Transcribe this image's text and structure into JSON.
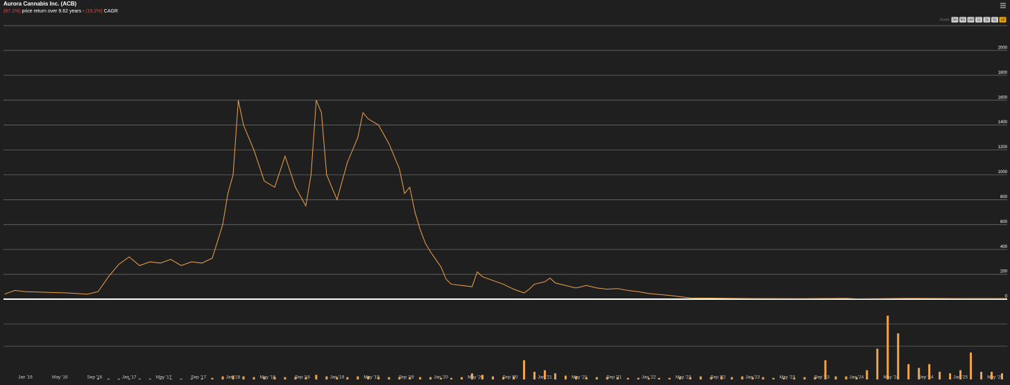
{
  "chart_data": {
    "type": "line",
    "title": "Aurora Cannabis Inc. (ACB)",
    "subtitle": [
      "(87.1%)",
      "price return over 9.62 years -",
      "(19.2%)",
      "CAGR"
    ],
    "zoom": {
      "label": "Zoom",
      "buttons": [
        "3m",
        "6m",
        "ytd",
        "1y",
        "3y",
        "5y",
        "all"
      ],
      "active": 6
    },
    "xlim": [
      2015.79,
      2025.45
    ],
    "xticks": [
      {
        "value": 2016,
        "label": "Jan '16"
      },
      {
        "value": 2016.333,
        "label": "May '16"
      },
      {
        "value": 2016.667,
        "label": "Sep '16"
      },
      {
        "value": 2017,
        "label": "Jan '17"
      },
      {
        "value": 2017.333,
        "label": "May '17"
      },
      {
        "value": 2017.667,
        "label": "Sep '17"
      },
      {
        "value": 2018,
        "label": "Jan '18"
      },
      {
        "value": 2018.333,
        "label": "May '18"
      },
      {
        "value": 2018.667,
        "label": "Sep '18"
      },
      {
        "value": 2019,
        "label": "Jan '19"
      },
      {
        "value": 2019.333,
        "label": "May '19"
      },
      {
        "value": 2019.667,
        "label": "Sep '19"
      },
      {
        "value": 2020,
        "label": "Jan '20"
      },
      {
        "value": 2020.333,
        "label": "May '20"
      },
      {
        "value": 2020.667,
        "label": "Sep '20"
      },
      {
        "value": 2021,
        "label": "Jan '21"
      },
      {
        "value": 2021.333,
        "label": "May '21"
      },
      {
        "value": 2021.667,
        "label": "Sep '21"
      },
      {
        "value": 2022,
        "label": "Jan '22"
      },
      {
        "value": 2022.333,
        "label": "May '22"
      },
      {
        "value": 2022.667,
        "label": "Sep '22"
      },
      {
        "value": 2023,
        "label": "Jan '23"
      },
      {
        "value": 2023.333,
        "label": "May '23"
      },
      {
        "value": 2023.667,
        "label": "Sep '23"
      },
      {
        "value": 2024,
        "label": "Jan '24"
      },
      {
        "value": 2024.333,
        "label": "May '24"
      },
      {
        "value": 2024.667,
        "label": "Sep '24"
      },
      {
        "value": 2025,
        "label": "Jan '25"
      },
      {
        "value": 2025.333,
        "label": "May '25"
      }
    ],
    "ylim": [
      0,
      2200
    ],
    "yticks": [
      0,
      200,
      400,
      600,
      800,
      1000,
      1200,
      1400,
      1600,
      1800,
      2000
    ],
    "y2lim": [
      0,
      100
    ],
    "grid": true,
    "series": [
      {
        "name": "Price",
        "type": "line",
        "color": "#f2a54a",
        "x": [
          2015.8,
          2015.9,
          2016.0,
          2016.2,
          2016.4,
          2016.6,
          2016.7,
          2016.8,
          2016.9,
          2017.0,
          2017.1,
          2017.2,
          2017.3,
          2017.4,
          2017.5,
          2017.6,
          2017.7,
          2017.8,
          2017.9,
          2017.95,
          2018.0,
          2018.05,
          2018.1,
          2018.15,
          2018.2,
          2018.3,
          2018.4,
          2018.5,
          2018.6,
          2018.7,
          2018.75,
          2018.8,
          2018.85,
          2018.9,
          2018.95,
          2019.0,
          2019.05,
          2019.1,
          2019.2,
          2019.25,
          2019.3,
          2019.4,
          2019.5,
          2019.6,
          2019.65,
          2019.7,
          2019.75,
          2019.8,
          2019.85,
          2019.9,
          2019.95,
          2020.0,
          2020.05,
          2020.1,
          2020.2,
          2020.3,
          2020.35,
          2020.4,
          2020.5,
          2020.6,
          2020.7,
          2020.8,
          2020.85,
          2020.9,
          2021.0,
          2021.05,
          2021.1,
          2021.2,
          2021.3,
          2021.4,
          2021.5,
          2021.6,
          2021.7,
          2021.8,
          2021.9,
          2022.0,
          2022.2,
          2022.4,
          2022.6,
          2022.8,
          2023.0,
          2023.5,
          2023.9,
          2024.0,
          2024.5,
          2025.0,
          2025.45
        ],
        "values": [
          40,
          70,
          60,
          55,
          50,
          40,
          60,
          180,
          280,
          340,
          270,
          300,
          290,
          320,
          270,
          300,
          290,
          330,
          600,
          850,
          1000,
          1600,
          1400,
          1300,
          1200,
          950,
          900,
          1150,
          900,
          750,
          1000,
          1600,
          1500,
          1000,
          900,
          800,
          950,
          1100,
          1300,
          1500,
          1450,
          1400,
          1250,
          1050,
          850,
          900,
          700,
          560,
          450,
          380,
          320,
          260,
          160,
          120,
          110,
          100,
          220,
          180,
          150,
          120,
          80,
          50,
          80,
          120,
          140,
          170,
          130,
          110,
          90,
          110,
          90,
          80,
          85,
          70,
          60,
          45,
          30,
          10,
          8,
          6,
          5,
          4,
          6,
          3,
          6,
          5,
          5
        ]
      },
      {
        "name": "Volume",
        "type": "bar",
        "axis": "y2",
        "color": "#f2a54a",
        "x": [
          2016.7,
          2016.8,
          2016.9,
          2017.0,
          2017.1,
          2017.2,
          2017.3,
          2017.4,
          2017.5,
          2017.6,
          2017.7,
          2017.8,
          2017.9,
          2018.0,
          2018.1,
          2018.2,
          2018.3,
          2018.4,
          2018.5,
          2018.6,
          2018.7,
          2018.8,
          2018.9,
          2019.0,
          2019.1,
          2019.2,
          2019.3,
          2019.4,
          2019.5,
          2019.6,
          2019.7,
          2019.8,
          2019.9,
          2020.0,
          2020.1,
          2020.2,
          2020.3,
          2020.4,
          2020.5,
          2020.6,
          2020.7,
          2020.8,
          2020.9,
          2021.0,
          2021.1,
          2021.2,
          2021.3,
          2021.4,
          2021.5,
          2021.6,
          2021.7,
          2021.8,
          2021.9,
          2022.0,
          2022.1,
          2022.2,
          2022.3,
          2022.4,
          2022.5,
          2022.6,
          2022.7,
          2022.8,
          2022.9,
          2023.0,
          2023.1,
          2023.2,
          2023.3,
          2023.4,
          2023.5,
          2023.6,
          2023.7,
          2023.8,
          2023.9,
          2024.0,
          2024.1,
          2024.2,
          2024.3,
          2024.4,
          2024.5,
          2024.6,
          2024.7,
          2024.8,
          2024.9,
          2025.0,
          2025.1,
          2025.2,
          2025.3,
          2025.4
        ],
        "values": [
          1,
          1,
          1,
          1,
          1,
          1,
          1,
          1,
          1,
          1,
          1,
          2,
          4,
          5,
          4,
          3,
          3,
          3,
          3,
          3,
          3,
          6,
          4,
          3,
          3,
          4,
          4,
          3,
          3,
          3,
          3,
          3,
          3,
          2,
          2,
          3,
          8,
          6,
          4,
          3,
          4,
          25,
          10,
          12,
          8,
          5,
          4,
          3,
          3,
          3,
          3,
          2,
          2,
          2,
          2,
          2,
          3,
          3,
          4,
          3,
          4,
          3,
          4,
          3,
          3,
          2,
          2,
          2,
          3,
          3,
          25,
          4,
          4,
          3,
          12,
          40,
          83,
          60,
          20,
          15,
          20,
          10,
          8,
          12,
          35,
          10,
          10,
          8
        ]
      }
    ]
  }
}
